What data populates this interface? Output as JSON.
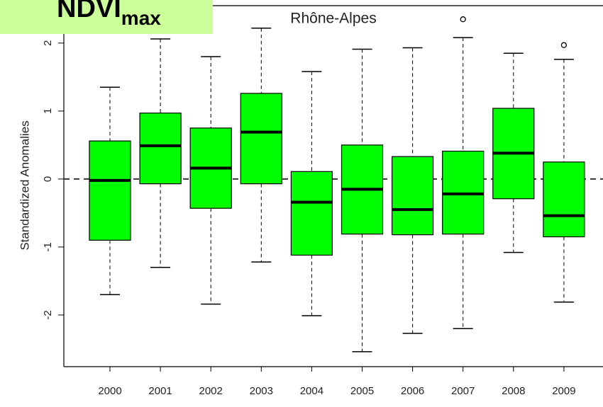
{
  "chart_data": {
    "type": "boxplot",
    "title": "Rhône-Alpes",
    "panel_label": {
      "text": "NDVI",
      "subscript": "max"
    },
    "y_label": "Standardized Anomalies",
    "categories": [
      "2000",
      "2001",
      "2002",
      "2003",
      "2004",
      "2005",
      "2006",
      "2007",
      "2008",
      "2009"
    ],
    "boxes": [
      {
        "min": -1.7,
        "q1": -0.9,
        "median": -0.02,
        "q3": 0.56,
        "max": 1.35
      },
      {
        "min": -1.3,
        "q1": -0.07,
        "median": 0.49,
        "q3": 0.97,
        "max": 2.06
      },
      {
        "min": -1.84,
        "q1": -0.43,
        "median": 0.16,
        "q3": 0.75,
        "max": 1.8
      },
      {
        "min": -1.22,
        "q1": -0.07,
        "median": 0.69,
        "q3": 1.26,
        "max": 2.22
      },
      {
        "min": -2.01,
        "q1": -1.12,
        "median": -0.34,
        "q3": 0.11,
        "max": 1.58
      },
      {
        "min": -2.54,
        "q1": -0.81,
        "median": -0.15,
        "q3": 0.5,
        "max": 1.91
      },
      {
        "min": -2.27,
        "q1": -0.82,
        "median": -0.45,
        "q3": 0.33,
        "max": 1.93
      },
      {
        "min": -2.2,
        "q1": -0.81,
        "median": -0.22,
        "q3": 0.41,
        "max": 2.08,
        "outliers": [
          2.35
        ]
      },
      {
        "min": -1.08,
        "q1": -0.29,
        "median": 0.38,
        "q3": 1.04,
        "max": 1.85
      },
      {
        "min": -1.81,
        "q1": -0.85,
        "median": -0.54,
        "q3": 0.25,
        "max": 1.76,
        "outliers": [
          1.97
        ]
      }
    ],
    "color": "#00ff00",
    "reference_line": 0,
    "ylim": [
      -2.76,
      2.55
    ],
    "yticks": [
      -2,
      -1,
      0,
      1,
      2
    ]
  }
}
